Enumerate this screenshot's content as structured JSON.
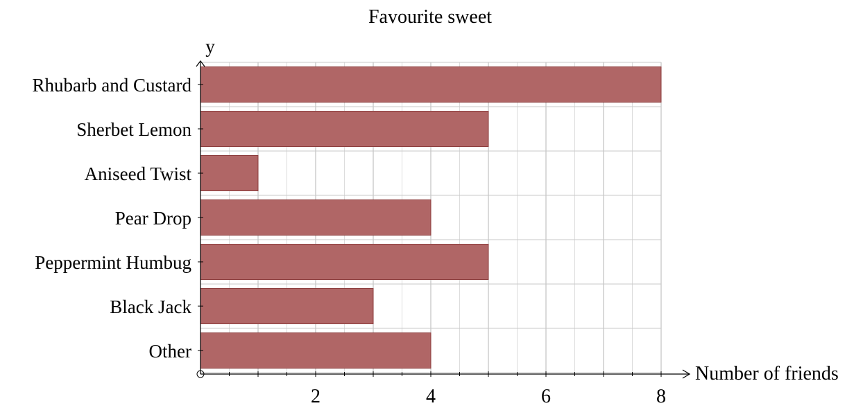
{
  "chart_data": {
    "type": "bar",
    "orientation": "horizontal",
    "title": "Favourite sweet",
    "xlabel": "Number of friends",
    "ylabel": "y",
    "categories": [
      "Rhubarb and Custard",
      "Sherbet Lemon",
      "Aniseed Twist",
      "Pear Drop",
      "Peppermint Humbug",
      "Black Jack",
      "Other"
    ],
    "values": [
      8,
      5,
      1,
      4,
      5,
      3,
      4
    ],
    "xlim": [
      0,
      8
    ],
    "x_ticks": [
      2,
      4,
      6,
      8
    ],
    "grid": true,
    "bar_color": "#b06666",
    "bar_edge_color": "#8a3a3a"
  }
}
